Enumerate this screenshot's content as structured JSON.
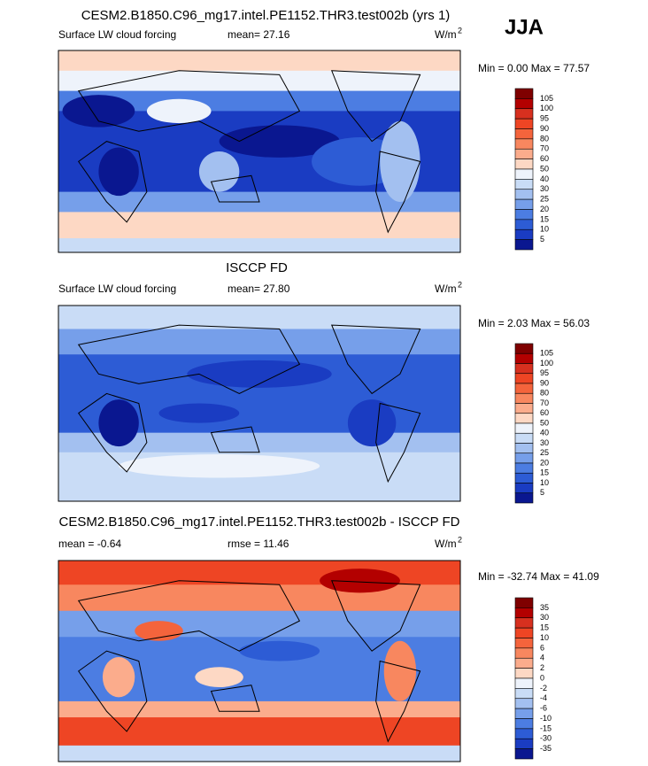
{
  "season": "JJA",
  "panels": [
    {
      "title": "CESM2.B1850.C96_mg17.intel.PE1152.THR3.test002b (yrs 1)",
      "left": "Surface LW cloud forcing",
      "center": "mean=  27.16",
      "units": "W/m",
      "units_exp": "2",
      "minmax": "Min =   0.00 Max =  77.57",
      "levels": [
        "105",
        "100",
        "95",
        "90",
        "80",
        "70",
        "60",
        "50",
        "40",
        "30",
        "25",
        "20",
        "15",
        "10",
        "5"
      ]
    },
    {
      "title": "ISCCP FD",
      "left": "Surface LW cloud forcing",
      "center": "mean=  27.80",
      "units": "W/m",
      "units_exp": "2",
      "minmax": "Min =   2.03 Max =  56.03",
      "levels": [
        "105",
        "100",
        "95",
        "90",
        "80",
        "70",
        "60",
        "50",
        "40",
        "30",
        "25",
        "20",
        "15",
        "10",
        "5"
      ]
    },
    {
      "title": "CESM2.B1850.C96_mg17.intel.PE1152.THR3.test002b - ISCCP FD",
      "left": "mean =  -0.64",
      "center": "rmse =  11.46",
      "units": "W/m",
      "units_exp": "2",
      "minmax": "Min = -32.74 Max =  41.09",
      "levels": [
        "35",
        "30",
        "15",
        "10",
        "6",
        "4",
        "2",
        "0",
        "-2",
        "-4",
        "-6",
        "-10",
        "-15",
        "-30",
        "-35"
      ]
    }
  ]
}
